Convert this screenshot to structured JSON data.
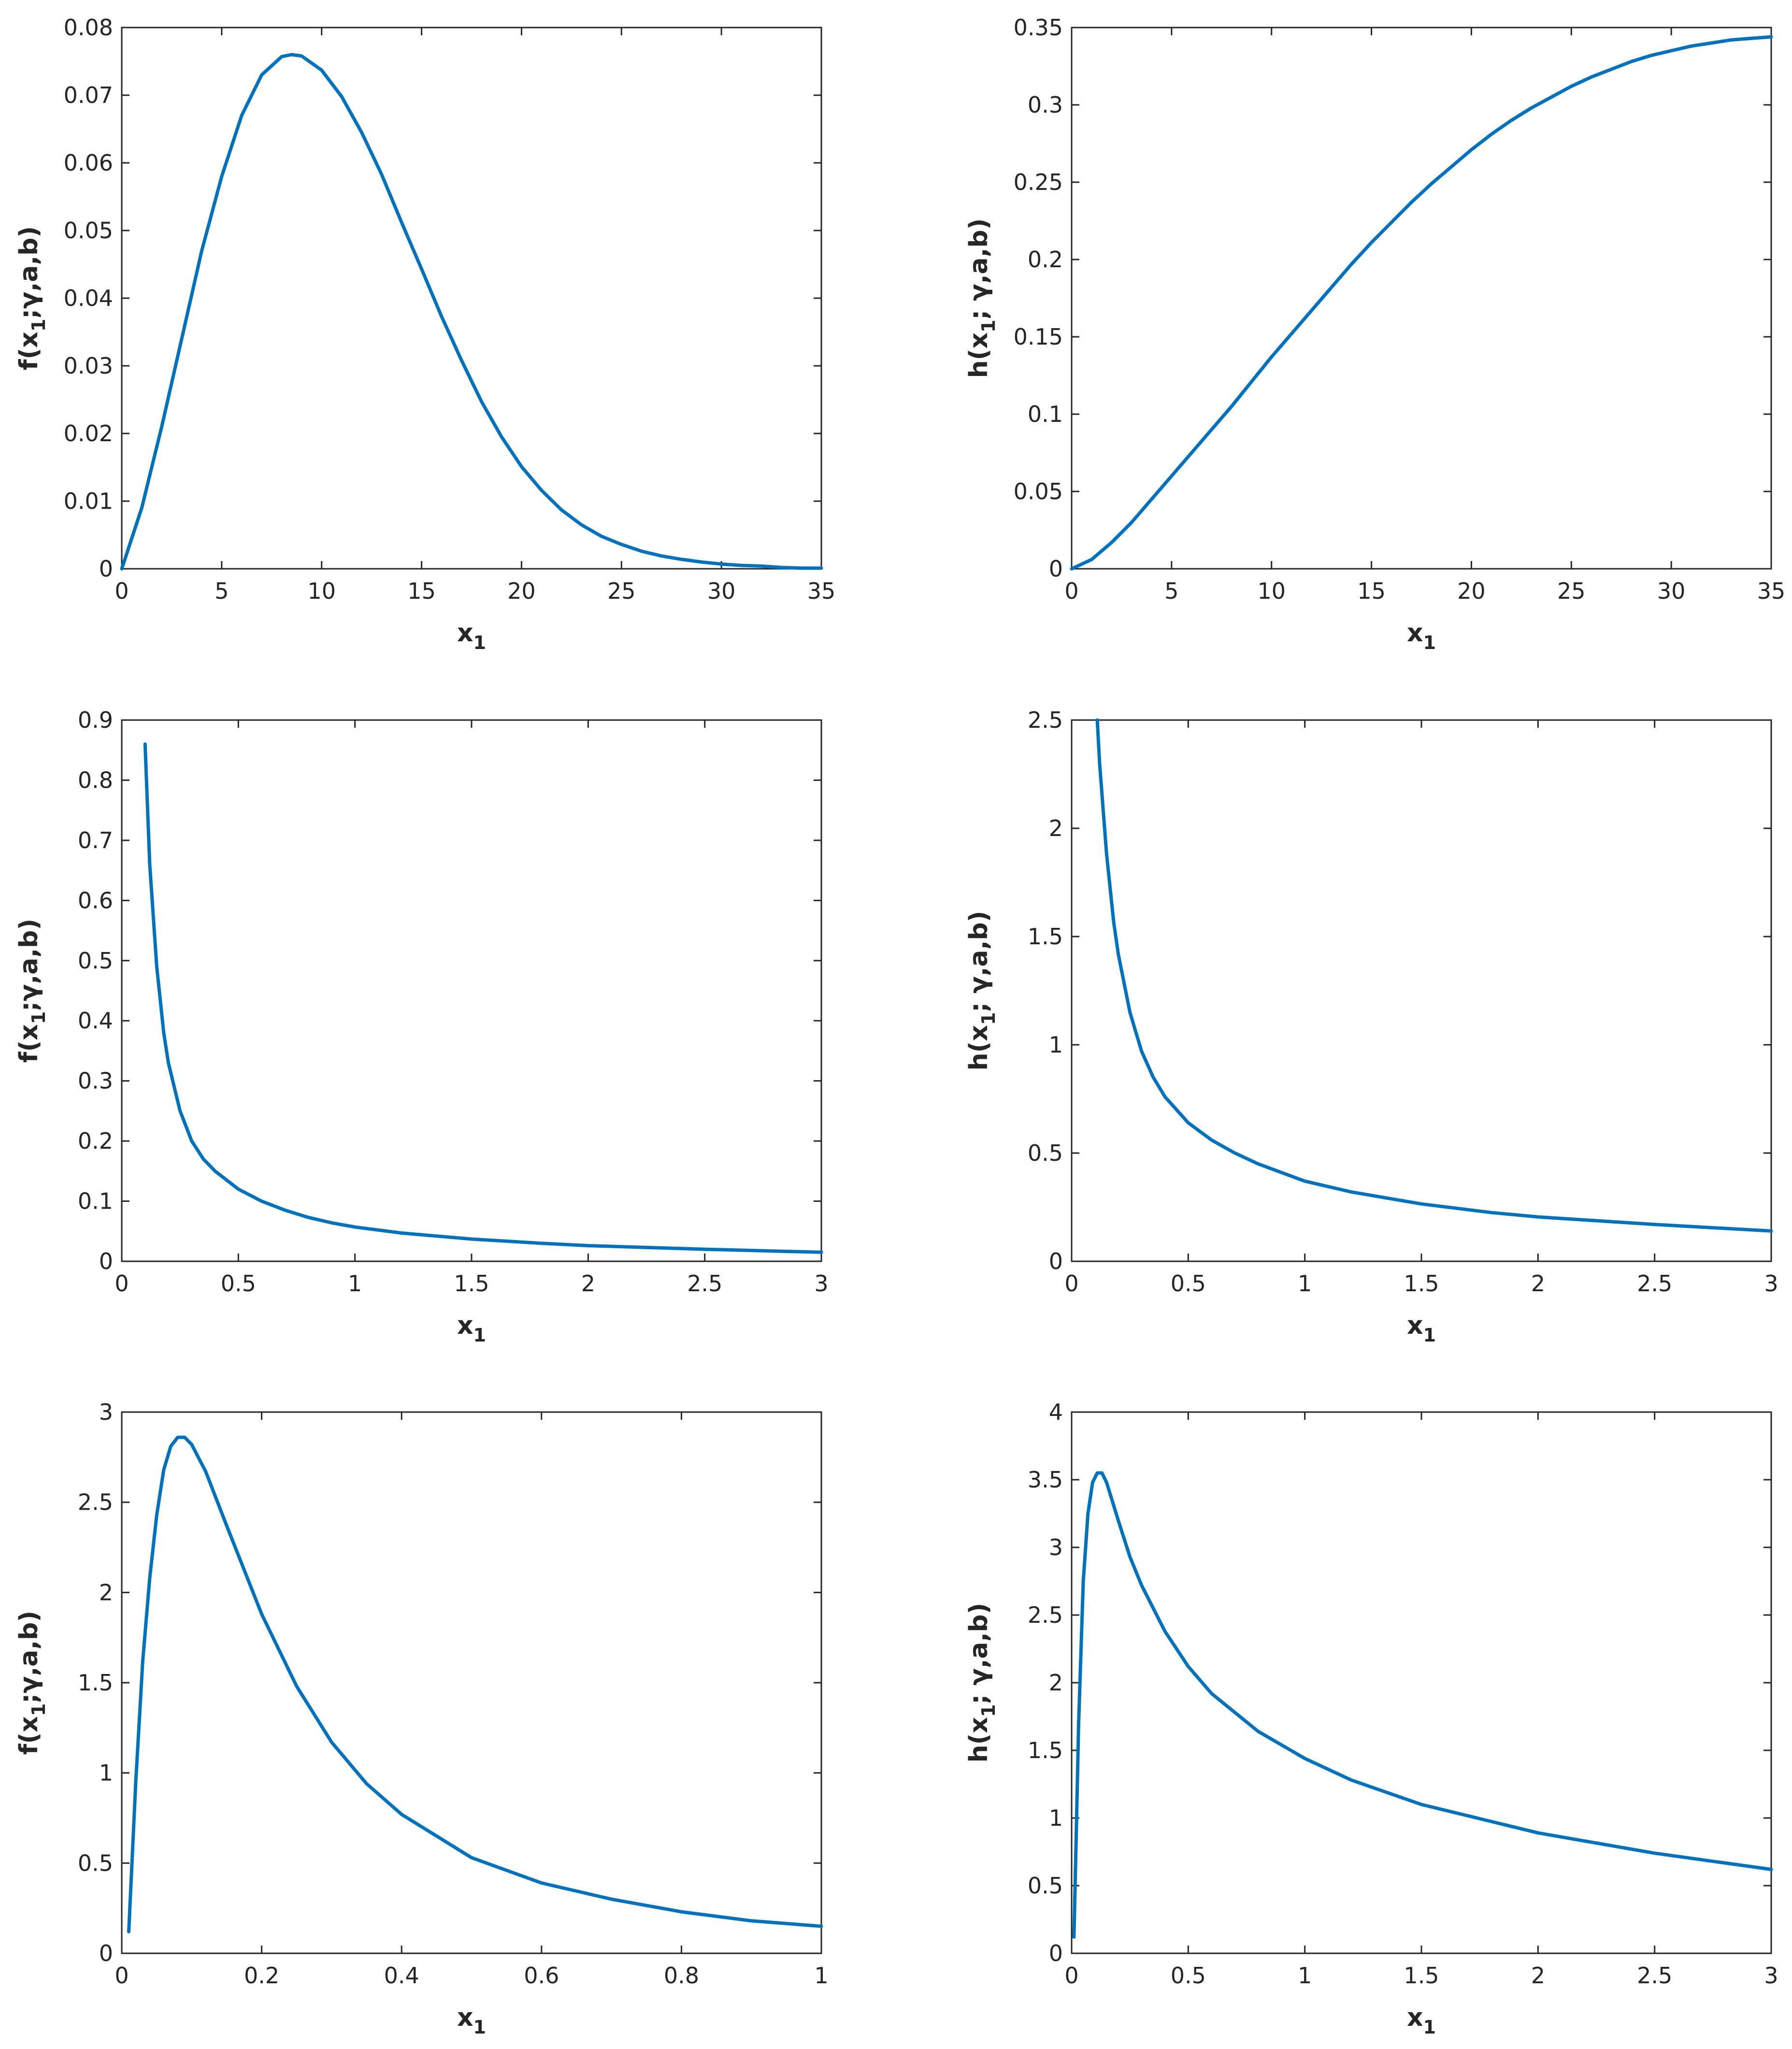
{
  "line_color": "#0072BD",
  "chart_data": [
    {
      "type": "line",
      "xlabel": "x",
      "xlabel_sub": "1",
      "ylabel_pre": "f(x",
      "ylabel_sub": "1",
      "ylabel_post": ";γ,a,b)",
      "xlim": [
        0,
        35
      ],
      "ylim": [
        0,
        0.08
      ],
      "xticks": [
        "0",
        "5",
        "10",
        "15",
        "20",
        "25",
        "30",
        "35"
      ],
      "yticks": [
        "0",
        "0.01",
        "0.02",
        "0.03",
        "0.04",
        "0.05",
        "0.06",
        "0.07",
        "0.08"
      ],
      "grid": false,
      "series": [
        {
          "x": [
            0,
            1,
            2,
            3,
            4,
            5,
            6,
            7,
            8,
            8.5,
            9,
            10,
            11,
            12,
            13,
            14,
            15,
            16,
            17,
            18,
            19,
            20,
            21,
            22,
            23,
            24,
            25,
            26,
            27,
            28,
            29,
            30,
            31,
            32,
            33,
            34,
            35
          ],
          "y": [
            0,
            0.009,
            0.021,
            0.034,
            0.047,
            0.058,
            0.067,
            0.073,
            0.0757,
            0.076,
            0.0758,
            0.0737,
            0.0698,
            0.0645,
            0.0583,
            0.0512,
            0.0443,
            0.0373,
            0.0308,
            0.0247,
            0.0195,
            0.0151,
            0.0116,
            0.0087,
            0.0065,
            0.0048,
            0.0036,
            0.0026,
            0.0019,
            0.0014,
            0.001,
            0.0007,
            0.0005,
            0.0004,
            0.0002,
            0.0001,
            0.0001
          ]
        }
      ]
    },
    {
      "type": "line",
      "xlabel": "x",
      "xlabel_sub": "1",
      "ylabel_pre": "h(x",
      "ylabel_sub": "1",
      "ylabel_post": "; γ,a,b)",
      "xlim": [
        0,
        35
      ],
      "ylim": [
        0,
        0.35
      ],
      "xticks": [
        "0",
        "5",
        "10",
        "15",
        "20",
        "25",
        "30",
        "35"
      ],
      "yticks": [
        "0",
        "0.05",
        "0.1",
        "0.15",
        "0.2",
        "0.25",
        "0.3",
        "0.35"
      ],
      "grid": false,
      "series": [
        {
          "x": [
            0,
            1,
            2,
            3,
            4,
            5,
            6,
            7,
            8,
            9,
            10,
            11,
            12,
            13,
            14,
            15,
            16,
            17,
            18,
            19,
            20,
            21,
            22,
            23,
            24,
            25,
            26,
            27,
            28,
            29,
            30,
            31,
            32,
            33,
            34,
            35
          ],
          "y": [
            0,
            0.006,
            0.017,
            0.03,
            0.045,
            0.06,
            0.075,
            0.09,
            0.105,
            0.121,
            0.137,
            0.152,
            0.167,
            0.182,
            0.197,
            0.211,
            0.224,
            0.237,
            0.249,
            0.26,
            0.271,
            0.281,
            0.29,
            0.298,
            0.305,
            0.312,
            0.318,
            0.323,
            0.328,
            0.332,
            0.335,
            0.338,
            0.34,
            0.342,
            0.343,
            0.344
          ]
        }
      ]
    },
    {
      "type": "line",
      "xlabel": "x",
      "xlabel_sub": "1",
      "ylabel_pre": "f(x",
      "ylabel_sub": "1",
      "ylabel_post": ";γ,a,b)",
      "xlim": [
        0,
        3
      ],
      "ylim": [
        0,
        0.9
      ],
      "xticks": [
        "0",
        "0.5",
        "1",
        "1.5",
        "2",
        "2.5",
        "3"
      ],
      "yticks": [
        "0",
        "0.1",
        "0.2",
        "0.3",
        "0.4",
        "0.5",
        "0.6",
        "0.7",
        "0.8",
        "0.9"
      ],
      "grid": false,
      "series": [
        {
          "x": [
            0.1,
            0.12,
            0.15,
            0.18,
            0.2,
            0.25,
            0.3,
            0.35,
            0.4,
            0.5,
            0.6,
            0.7,
            0.8,
            0.9,
            1,
            1.2,
            1.5,
            1.8,
            2,
            2.5,
            3
          ],
          "y": [
            0.86,
            0.66,
            0.49,
            0.38,
            0.33,
            0.25,
            0.2,
            0.17,
            0.15,
            0.12,
            0.1,
            0.085,
            0.073,
            0.064,
            0.057,
            0.047,
            0.037,
            0.03,
            0.026,
            0.02,
            0.015
          ]
        }
      ]
    },
    {
      "type": "line",
      "xlabel": "x",
      "xlabel_sub": "1",
      "ylabel_pre": "h(x",
      "ylabel_sub": "1",
      "ylabel_post": "; γ,a,b)",
      "xlim": [
        0,
        3
      ],
      "ylim": [
        0,
        2.5
      ],
      "xticks": [
        "0",
        "0.5",
        "1",
        "1.5",
        "2",
        "2.5",
        "3"
      ],
      "yticks": [
        "0",
        "0.5",
        "1",
        "1.5",
        "2",
        "2.5"
      ],
      "grid": false,
      "series": [
        {
          "x": [
            0.11,
            0.12,
            0.15,
            0.18,
            0.2,
            0.25,
            0.3,
            0.35,
            0.4,
            0.5,
            0.6,
            0.7,
            0.8,
            0.9,
            1,
            1.2,
            1.5,
            1.8,
            2,
            2.5,
            3
          ],
          "y": [
            2.5,
            2.3,
            1.88,
            1.57,
            1.42,
            1.15,
            0.97,
            0.85,
            0.76,
            0.64,
            0.56,
            0.5,
            0.45,
            0.41,
            0.37,
            0.32,
            0.265,
            0.225,
            0.205,
            0.17,
            0.14
          ]
        }
      ]
    },
    {
      "type": "line",
      "xlabel": "x",
      "xlabel_sub": "1",
      "ylabel_pre": "f(x",
      "ylabel_sub": "1",
      "ylabel_post": ";γ,a,b)",
      "xlim": [
        0,
        1
      ],
      "ylim": [
        0,
        3
      ],
      "xticks": [
        "0",
        "0.2",
        "0.4",
        "0.6",
        "0.8",
        "1"
      ],
      "yticks": [
        "0",
        "0.5",
        "1",
        "1.5",
        "2",
        "2.5",
        "3"
      ],
      "grid": false,
      "series": [
        {
          "x": [
            0.01,
            0.02,
            0.03,
            0.04,
            0.05,
            0.06,
            0.07,
            0.08,
            0.09,
            0.1,
            0.12,
            0.15,
            0.2,
            0.25,
            0.3,
            0.35,
            0.4,
            0.5,
            0.6,
            0.7,
            0.8,
            0.9,
            1
          ],
          "y": [
            0.12,
            0.95,
            1.62,
            2.08,
            2.43,
            2.68,
            2.81,
            2.86,
            2.86,
            2.82,
            2.67,
            2.37,
            1.88,
            1.48,
            1.17,
            0.94,
            0.77,
            0.53,
            0.39,
            0.3,
            0.23,
            0.18,
            0.15
          ]
        }
      ]
    },
    {
      "type": "line",
      "xlabel": "x",
      "xlabel_sub": "1",
      "ylabel_pre": "h(x",
      "ylabel_sub": "1",
      "ylabel_post": "; γ,a,b)",
      "xlim": [
        0,
        3
      ],
      "ylim": [
        0,
        4
      ],
      "xticks": [
        "0",
        "0.5",
        "1",
        "1.5",
        "2",
        "2.5",
        "3"
      ],
      "yticks": [
        "0",
        "0.5",
        "1",
        "1.5",
        "2",
        "2.5",
        "3",
        "3.5",
        "4"
      ],
      "grid": false,
      "series": [
        {
          "x": [
            0.01,
            0.02,
            0.03,
            0.05,
            0.07,
            0.09,
            0.11,
            0.13,
            0.15,
            0.2,
            0.25,
            0.3,
            0.4,
            0.5,
            0.6,
            0.8,
            1,
            1.2,
            1.5,
            2,
            2.5,
            3
          ],
          "y": [
            0.12,
            0.9,
            1.7,
            2.75,
            3.25,
            3.48,
            3.55,
            3.55,
            3.48,
            3.2,
            2.93,
            2.72,
            2.38,
            2.12,
            1.92,
            1.64,
            1.44,
            1.28,
            1.1,
            0.89,
            0.74,
            0.62
          ]
        }
      ]
    }
  ]
}
